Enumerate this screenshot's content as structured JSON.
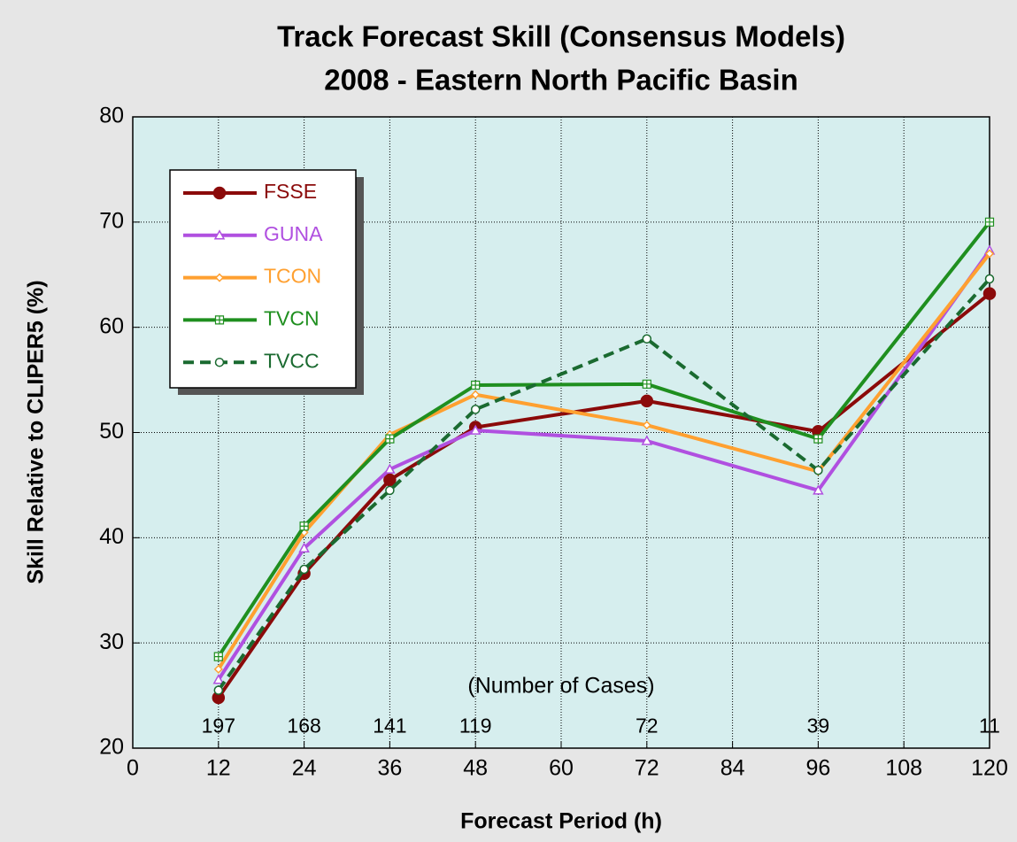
{
  "chart_data": {
    "type": "line",
    "title": [
      "Track Forecast Skill (Consensus Models)",
      "2008 - Eastern North Pacific Basin"
    ],
    "x_label": "Forecast Period (h)",
    "y_label": "Skill Relative to CLIPER5 (%)",
    "annotation": "(Number of Cases)",
    "x": [
      12,
      24,
      36,
      48,
      72,
      96,
      120
    ],
    "cases": [
      197,
      168,
      141,
      119,
      72,
      39,
      11
    ],
    "cases_y": 22,
    "xlim": [
      0,
      120
    ],
    "xticks": [
      0,
      12,
      24,
      36,
      48,
      60,
      72,
      84,
      96,
      108,
      120
    ],
    "ylim": [
      20,
      80
    ],
    "yticks": [
      20,
      30,
      40,
      50,
      60,
      70,
      80
    ],
    "grid": true,
    "legend": "upper left",
    "series": [
      {
        "name": "FSSE",
        "color": "#8b0a0a",
        "marker": "circle",
        "values": [
          24.8,
          36.6,
          45.5,
          50.5,
          53.0,
          50.1,
          63.2
        ]
      },
      {
        "name": "GUNA",
        "color": "#b050e0",
        "marker": "triangle",
        "values": [
          26.5,
          39.0,
          46.5,
          50.2,
          49.2,
          44.5,
          67.3
        ]
      },
      {
        "name": "TCON",
        "color": "#ffa030",
        "marker": "diamond",
        "values": [
          27.5,
          40.5,
          49.8,
          53.6,
          50.7,
          46.3,
          67.0
        ]
      },
      {
        "name": "TVCN",
        "color": "#1f8f1f",
        "marker": "square",
        "values": [
          28.7,
          41.1,
          49.4,
          54.5,
          54.6,
          49.4,
          70.0
        ]
      },
      {
        "name": "TVCC",
        "color": "#1a6a30",
        "marker": "open-circle",
        "dashed": true,
        "values": [
          25.5,
          37.0,
          44.5,
          52.2,
          58.9,
          46.4,
          64.6
        ]
      }
    ]
  }
}
